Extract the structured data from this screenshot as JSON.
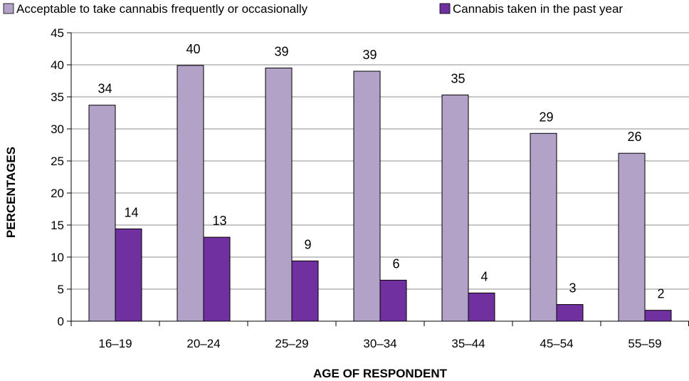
{
  "chart_data": {
    "type": "bar",
    "categories": [
      "16–19",
      "20–24",
      "25–29",
      "30–34",
      "35–44",
      "45–54",
      "55–59"
    ],
    "series": [
      {
        "name": "Acceptable to take cannabis frequently or occasionally",
        "values": [
          34,
          40,
          39,
          39,
          35,
          29,
          26
        ],
        "plotted": [
          33.7,
          39.9,
          39.5,
          39.0,
          35.3,
          29.3,
          26.2
        ],
        "color": "#b2a2c8"
      },
      {
        "name": "Cannabis taken in the past year",
        "values": [
          14,
          13,
          9,
          6,
          4,
          3,
          2
        ],
        "plotted": [
          14.4,
          13.1,
          9.4,
          6.4,
          4.4,
          2.6,
          1.7
        ],
        "color": "#7030a0"
      }
    ],
    "xlabel": "AGE OF RESPONDENT",
    "ylabel": "PERCENTAGES",
    "ylim": [
      0,
      45
    ],
    "yticks": [
      0,
      5,
      10,
      15,
      20,
      25,
      30,
      35,
      40,
      45
    ],
    "grid": true,
    "legend": "top"
  }
}
